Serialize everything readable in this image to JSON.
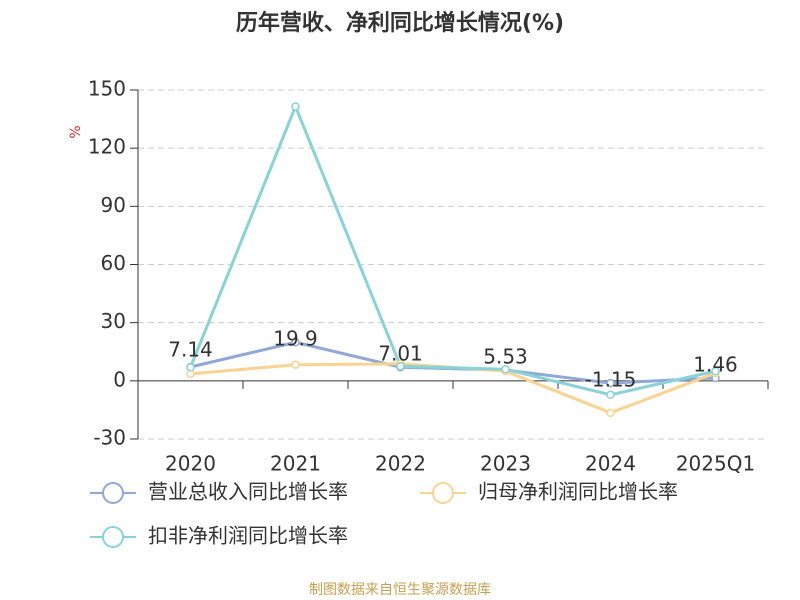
{
  "chart_data": {
    "type": "line",
    "title": "历年营收、净利同比增长情况(%)",
    "y_label": "%",
    "categories": [
      "2020",
      "2021",
      "2022",
      "2023",
      "2024",
      "2025Q1"
    ],
    "series": [
      {
        "name": "营业总收入同比增长率",
        "color": "#8fa8d6",
        "values": [
          7.14,
          19.9,
          7.01,
          5.53,
          -1.15,
          1.46
        ],
        "labels": true
      },
      {
        "name": "归母净利润同比增长率",
        "color": "#f9d38f",
        "values": [
          3.6,
          8.3,
          8.8,
          5.0,
          -16.5,
          4.0
        ]
      },
      {
        "name": "扣非净利润同比增长率",
        "color": "#88d3d9",
        "values": [
          7.0,
          141.5,
          7.5,
          6.0,
          -7.2,
          5.0
        ]
      }
    ],
    "ylim": [
      -30,
      150
    ],
    "yticks": [
      -30,
      0,
      30,
      60,
      90,
      120,
      150
    ],
    "grid": true,
    "source": "制图数据来自恒生聚源数据库"
  }
}
